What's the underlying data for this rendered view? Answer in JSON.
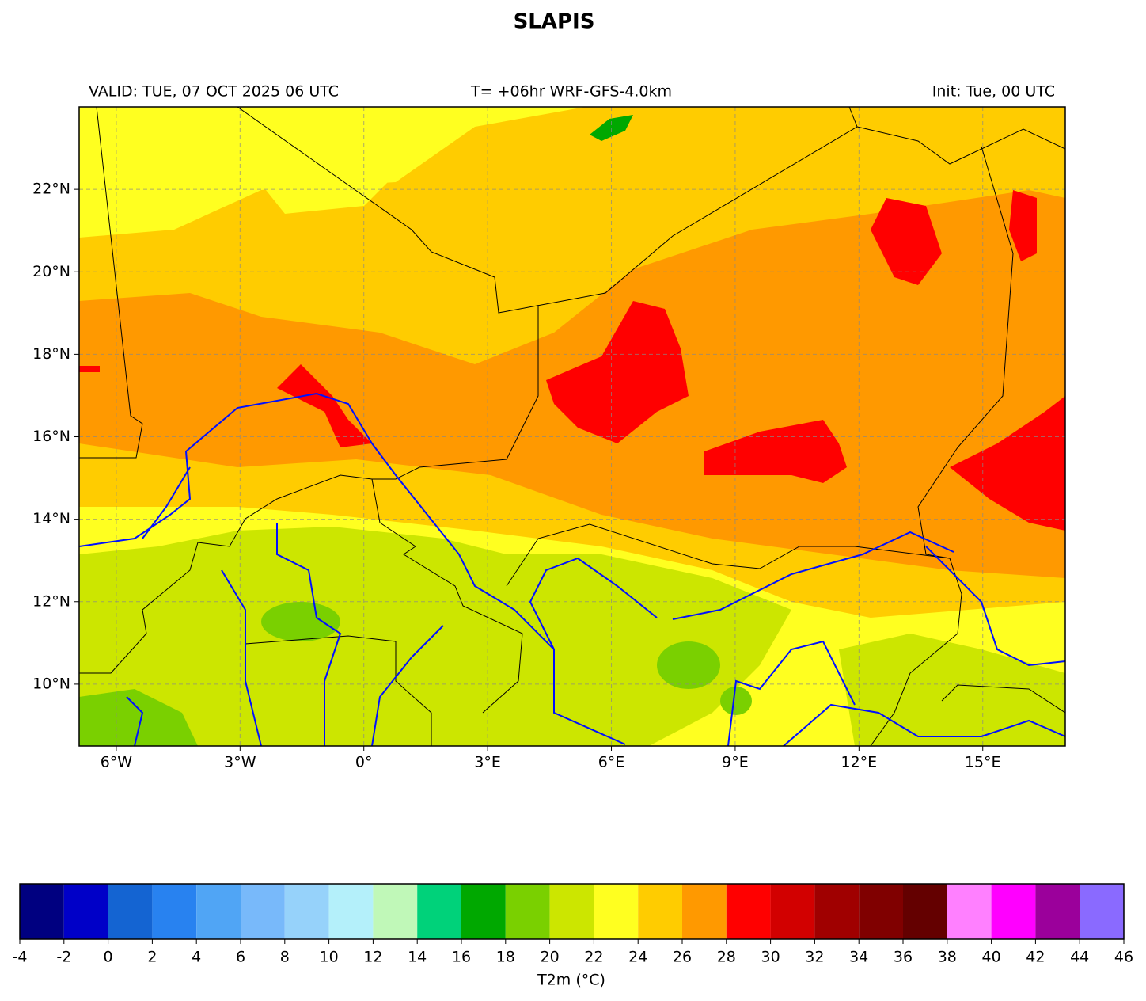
{
  "title": "SLAPIS",
  "valid": "VALID: TUE, 07 OCT 2025 06 UTC",
  "forecast": "T= +06hr WRF-GFS-4.0km",
  "init": "Init: Tue, 00 UTC",
  "map": {
    "xlim": [
      -6.9,
      17.0
    ],
    "ylim": [
      8.5,
      24.0
    ],
    "grid": true,
    "xticks": [
      {
        "value": -6,
        "label": "6°W"
      },
      {
        "value": -3,
        "label": "3°W"
      },
      {
        "value": 0,
        "label": "0°"
      },
      {
        "value": 3,
        "label": "3°E"
      },
      {
        "value": 6,
        "label": "6°E"
      },
      {
        "value": 9,
        "label": "9°E"
      },
      {
        "value": 12,
        "label": "12°E"
      },
      {
        "value": 15,
        "label": "15°E"
      }
    ],
    "yticks": [
      {
        "value": 10,
        "label": "10°N"
      },
      {
        "value": 12,
        "label": "12°N"
      },
      {
        "value": 14,
        "label": "14°N"
      },
      {
        "value": 16,
        "label": "16°N"
      },
      {
        "value": 18,
        "label": "18°N"
      },
      {
        "value": 20,
        "label": "20°N"
      },
      {
        "value": 22,
        "label": "22°N"
      }
    ]
  },
  "colorbar": {
    "label": "T2m (°C)",
    "ticks": [
      -4,
      -2,
      0,
      2,
      4,
      6,
      8,
      10,
      12,
      14,
      16,
      18,
      20,
      22,
      24,
      26,
      28,
      30,
      32,
      34,
      36,
      38,
      40,
      42,
      44,
      46
    ],
    "colors": [
      "#000080",
      "#0000c8",
      "#1464d2",
      "#2882f0",
      "#50a5f5",
      "#78b9fa",
      "#96d2fa",
      "#b4f0fa",
      "#c0f8b8",
      "#00d27a",
      "#00a800",
      "#7ad000",
      "#cce600",
      "#ffff20",
      "#ffcc00",
      "#ff9900",
      "#ff0000",
      "#d20000",
      "#a00000",
      "#800000",
      "#640000",
      "#ff80ff",
      "#ff00ff",
      "#9b009b",
      "#8a6aff"
    ]
  }
}
